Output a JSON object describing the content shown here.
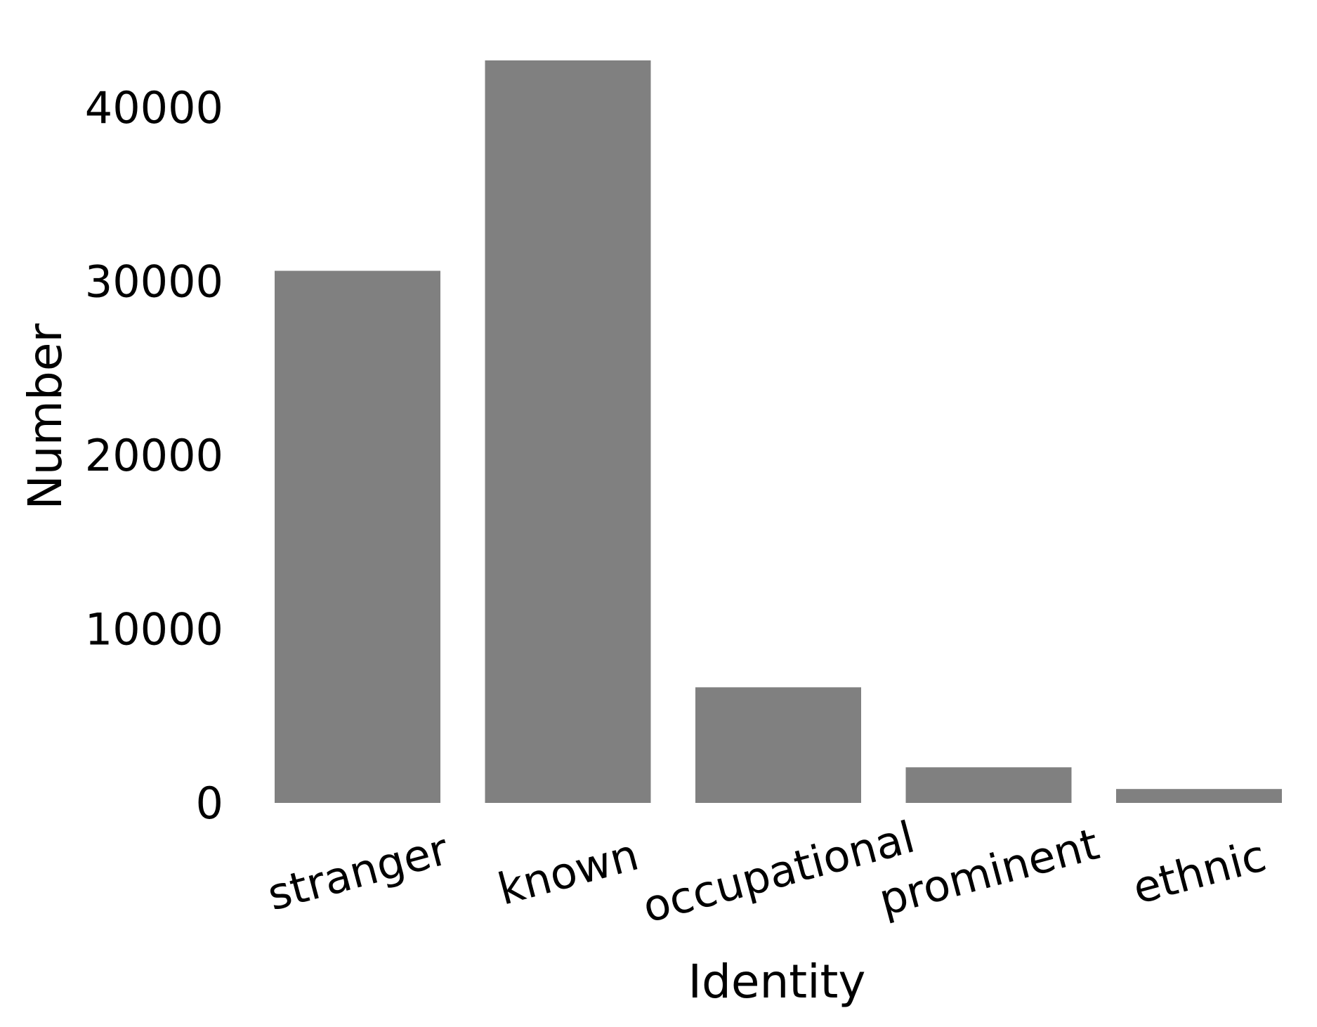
{
  "chart_data": {
    "type": "bar",
    "title": "",
    "xlabel": "Identity",
    "ylabel": "Number",
    "categories": [
      "stranger",
      "known",
      "occupational",
      "prominent",
      "ethnic"
    ],
    "values": [
      30600,
      42700,
      6650,
      2050,
      800
    ],
    "ylim": [
      0,
      42700
    ],
    "yticks": [
      0,
      10000,
      20000,
      30000,
      40000
    ],
    "ytick_labels": [
      "0",
      "10000",
      "20000",
      "30000",
      "40000"
    ],
    "bar_color": "#808080",
    "grid": false,
    "legend": "none"
  }
}
